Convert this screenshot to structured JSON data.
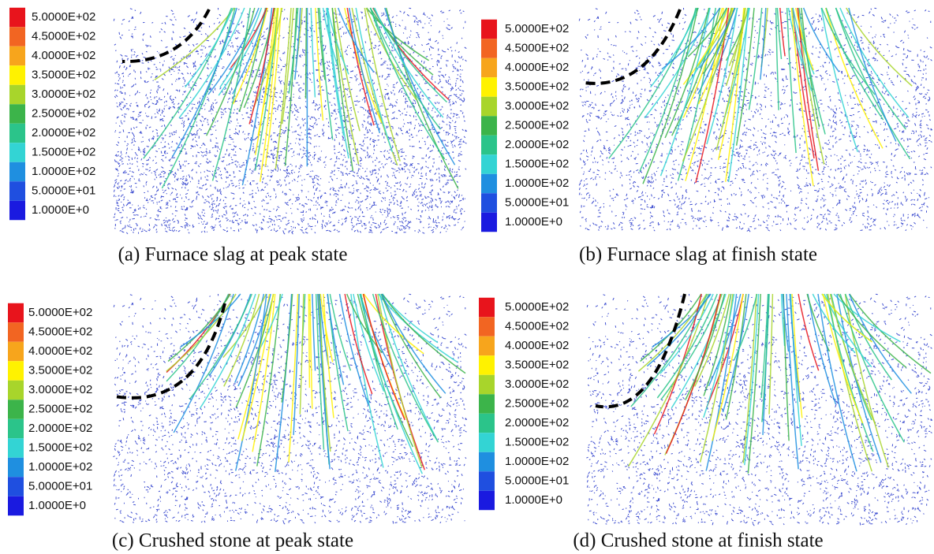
{
  "panels": [
    {
      "caption": "(a) Furnace slag at peak state",
      "legend": [
        "5.0000E+02",
        "4.5000E+02",
        "4.0000E+02",
        "3.5000E+02",
        "3.0000E+02",
        "2.5000E+02",
        "2.0000E+02",
        "1.5000E+02",
        "1.0000E+02",
        "5.0000E+01",
        "1.0000E+0"
      ]
    },
    {
      "caption": "(b) Furnace slag at finish state",
      "legend": [
        "5.0000E+02",
        "4.5000E+02",
        "4.0000E+02",
        "3.5000E+02",
        "3.0000E+02",
        "2.5000E+02",
        "2.0000E+02",
        "1.5000E+02",
        "1.0000E+02",
        "5.0000E+01",
        "1.0000E+0"
      ]
    },
    {
      "caption": "(c) Crushed stone at peak state",
      "legend": [
        "5.0000E+02",
        "4.5000E+02",
        "4.0000E+02",
        "3.5000E+02",
        "3.0000E+02",
        "2.5000E+02",
        "2.0000E+02",
        "1.5000E+02",
        "1.0000E+02",
        "5.0000E+01",
        "1.0000E+0"
      ]
    },
    {
      "caption": "(d) Crushed stone at finish state",
      "legend": [
        "5.0000E+02",
        "4.5000E+02",
        "4.0000E+02",
        "3.5000E+02",
        "3.0000E+02",
        "2.5000E+02",
        "2.0000E+02",
        "1.5000E+02",
        "1.0000E+02",
        "5.0000E+01",
        "1.0000E+0"
      ]
    }
  ],
  "legend_colors": [
    "#e8141c",
    "#f26522",
    "#f7a51c",
    "#fff200",
    "#a8d52b",
    "#3cb44a",
    "#2bc48a",
    "#33d4d4",
    "#1f8fe0",
    "#1f4fe0",
    "#1a1ae0"
  ]
}
